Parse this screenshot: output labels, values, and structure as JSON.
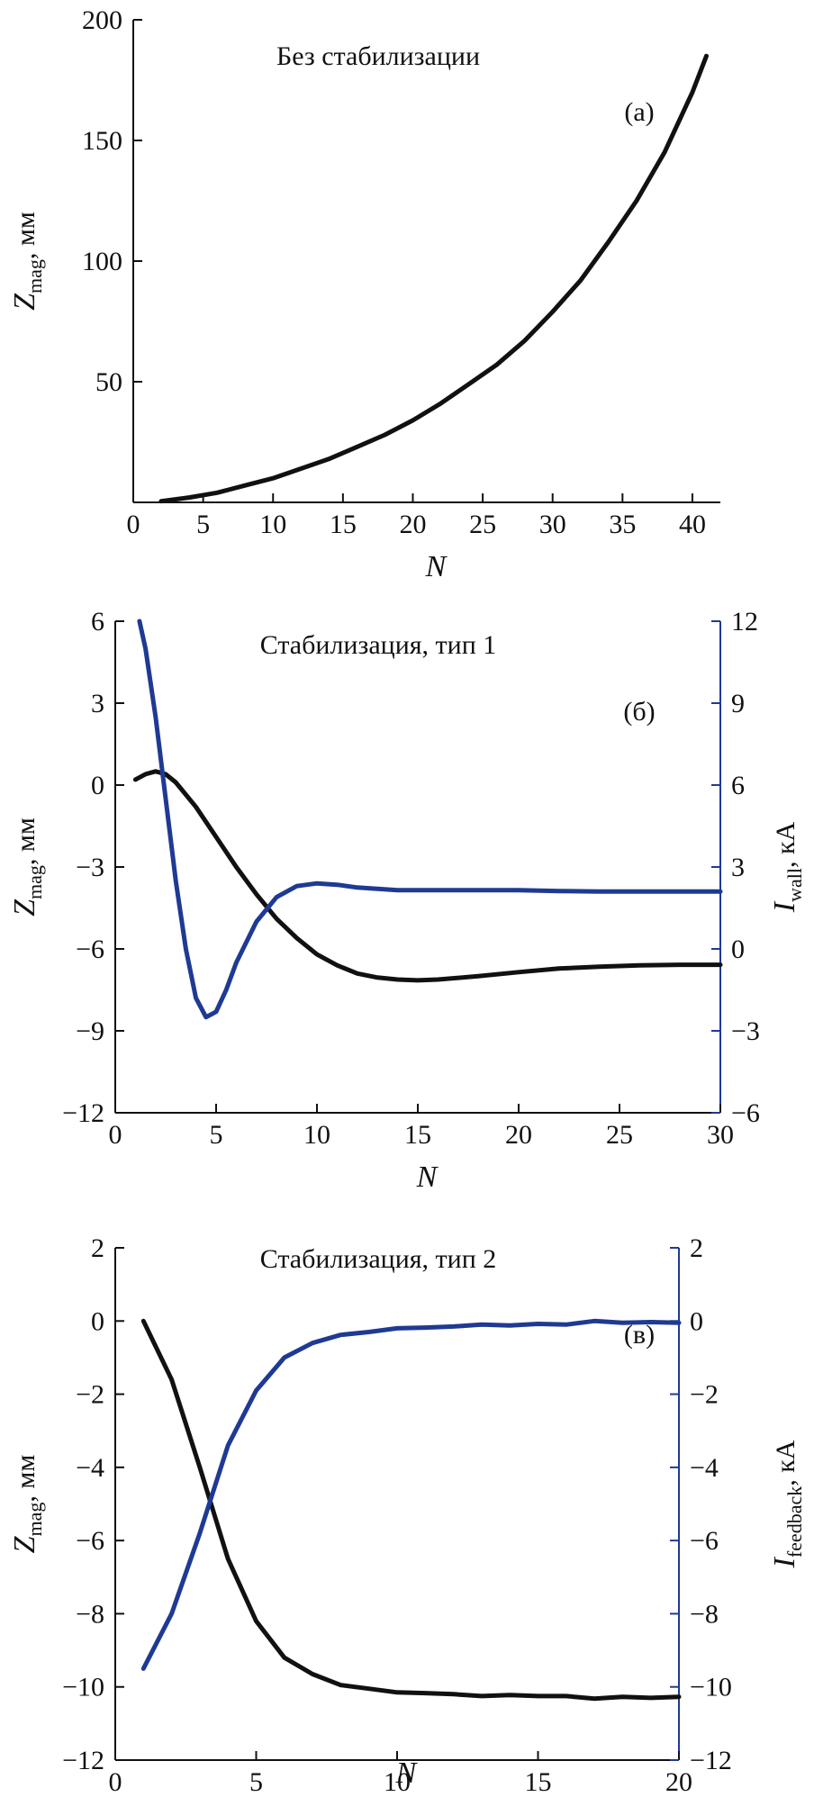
{
  "chart_data": [
    {
      "type": "line",
      "title": "Без стабилизации",
      "panel_label": "(а)",
      "xlabel": "N",
      "ylabel": {
        "main": "Z",
        "sub": "mag",
        "unit": ", мм"
      },
      "xlim": [
        0,
        42
      ],
      "ylim": [
        0,
        200
      ],
      "x_ticks": [
        0,
        5,
        10,
        15,
        20,
        25,
        30,
        35,
        40
      ],
      "y_ticks": [
        50,
        100,
        150,
        200
      ],
      "grid": false,
      "series": [
        {
          "color": "#111111",
          "axis": "left",
          "x": [
            2,
            4,
            6,
            8,
            10,
            12,
            14,
            16,
            18,
            20,
            22,
            24,
            26,
            28,
            30,
            32,
            34,
            36,
            38,
            40,
            41
          ],
          "y": [
            0.5,
            2,
            4,
            7,
            10,
            14,
            18,
            23,
            28,
            34,
            41,
            49,
            57,
            67,
            79,
            92,
            108,
            125,
            145,
            170,
            185
          ]
        }
      ]
    },
    {
      "type": "line",
      "title": "Стабилизация, тип 1",
      "panel_label": "(б)",
      "xlabel": "N",
      "ylabel": {
        "main": "Z",
        "sub": "mag",
        "unit": ", мм"
      },
      "y2label": {
        "main": "I",
        "sub": "wall",
        "unit": ", кА"
      },
      "xlim": [
        0,
        30
      ],
      "ylim": [
        -12,
        6
      ],
      "y2lim": [
        -6,
        12
      ],
      "x_ticks": [
        0,
        5,
        10,
        15,
        20,
        25,
        30
      ],
      "y_ticks": [
        -12,
        -9,
        -6,
        -3,
        0,
        3,
        6
      ],
      "y2_ticks": [
        -6,
        -3,
        0,
        3,
        6,
        9,
        12
      ],
      "grid": false,
      "series": [
        {
          "color": "#111111",
          "axis": "left",
          "x": [
            1,
            1.5,
            2,
            2.5,
            3,
            4,
            5,
            6,
            7,
            8,
            9,
            10,
            11,
            12,
            13,
            14,
            15,
            16,
            18,
            20,
            22,
            24,
            26,
            28,
            30
          ],
          "y": [
            0.2,
            0.4,
            0.5,
            0.4,
            0.1,
            -0.8,
            -1.9,
            -3.0,
            -4.0,
            -4.9,
            -5.6,
            -6.2,
            -6.6,
            -6.9,
            -7.05,
            -7.12,
            -7.15,
            -7.12,
            -7.0,
            -6.85,
            -6.72,
            -6.65,
            -6.6,
            -6.58,
            -6.58
          ]
        },
        {
          "color": "#1f3a93",
          "axis": "right",
          "x": [
            1.2,
            1.5,
            2,
            2.5,
            3,
            3.5,
            4,
            4.5,
            5,
            5.5,
            6,
            7,
            8,
            9,
            10,
            11,
            12,
            14,
            16,
            18,
            20,
            22,
            24,
            26,
            28,
            30
          ],
          "y": [
            12,
            11,
            8.5,
            5.5,
            2.5,
            0,
            -1.8,
            -2.5,
            -2.3,
            -1.5,
            -0.5,
            1,
            1.9,
            2.3,
            2.4,
            2.35,
            2.25,
            2.15,
            2.15,
            2.15,
            2.15,
            2.12,
            2.1,
            2.1,
            2.1,
            2.1
          ]
        }
      ]
    },
    {
      "type": "line",
      "title": "Стабилизация, тип 2",
      "panel_label": "(в)",
      "xlabel": "N",
      "ylabel": {
        "main": "Z",
        "sub": "mag",
        "unit": ", мм"
      },
      "y2label": {
        "main": "I",
        "sub": "feedback",
        "unit": ", кА"
      },
      "xlim": [
        0,
        20
      ],
      "ylim": [
        -12,
        2
      ],
      "y2lim": [
        -12,
        2
      ],
      "x_ticks": [
        0,
        5,
        10,
        15,
        20
      ],
      "y_ticks": [
        -12,
        -10,
        -8,
        -6,
        -4,
        -2,
        0,
        2
      ],
      "y2_ticks": [
        -12,
        -10,
        -8,
        -6,
        -4,
        -2,
        0,
        2
      ],
      "grid": false,
      "series": [
        {
          "color": "#111111",
          "axis": "left",
          "x": [
            1,
            2,
            3,
            4,
            5,
            6,
            7,
            8,
            9,
            10,
            11,
            12,
            13,
            14,
            15,
            16,
            17,
            18,
            19,
            20
          ],
          "y": [
            0,
            -1.6,
            -4.0,
            -6.5,
            -8.2,
            -9.2,
            -9.65,
            -9.95,
            -10.05,
            -10.15,
            -10.17,
            -10.2,
            -10.25,
            -10.22,
            -10.25,
            -10.25,
            -10.32,
            -10.27,
            -10.3,
            -10.27
          ]
        },
        {
          "color": "#1f3a93",
          "axis": "right",
          "x": [
            1,
            2,
            3,
            4,
            5,
            6,
            7,
            8,
            9,
            10,
            11,
            12,
            13,
            14,
            15,
            16,
            17,
            18,
            19,
            20
          ],
          "y": [
            -9.5,
            -8.0,
            -5.8,
            -3.4,
            -1.9,
            -1.0,
            -0.6,
            -0.38,
            -0.3,
            -0.2,
            -0.18,
            -0.15,
            -0.1,
            -0.12,
            -0.08,
            -0.1,
            0,
            -0.05,
            -0.03,
            -0.05
          ]
        }
      ]
    }
  ]
}
